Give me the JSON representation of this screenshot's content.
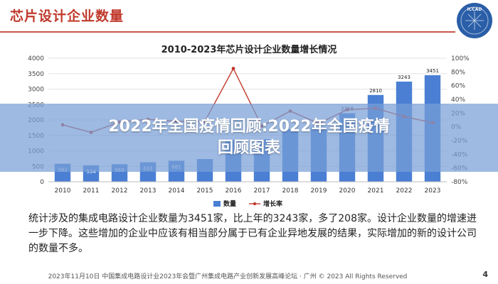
{
  "header": {
    "title": "芯片设计企业数量",
    "logo_text": "ICCAD"
  },
  "colors": {
    "accent": "#c0392b",
    "bar": "#4a7fd4",
    "line": "#c0392b",
    "overlay": "#78a0d7"
  },
  "overlay": {
    "line1": "2022年全国疫情回顾:2022年全国疫情",
    "line2": "回顾图表"
  },
  "chart_data": {
    "type": "bar",
    "title": "2010-2023年芯片设计企业数量增长情况",
    "categories": [
      "2010",
      "2011",
      "2012",
      "2013",
      "2014",
      "2015",
      "2016",
      "2017",
      "2018",
      "2019",
      "2020",
      "2021",
      "2022",
      "2023"
    ],
    "y_ticks_left": [
      "0",
      "500",
      "1000",
      "1500",
      "2000",
      "2500",
      "3000",
      "3500",
      "4000"
    ],
    "y_ticks_right": [
      "-80%",
      "-60%",
      "-40%",
      "-20%",
      "0%",
      "20%",
      "40%",
      "60%",
      "80%",
      "100%"
    ],
    "ylim_left": [
      0,
      4000
    ],
    "ylim_right": [
      -80,
      100
    ],
    "grid": true,
    "legend_position": "bottom-center",
    "series": [
      {
        "name": "数量",
        "kind": "bar",
        "values": [
          582,
          534,
          569,
          632,
          681,
          736,
          1362,
          1380,
          1698,
          1780,
          2218,
          2810,
          3243,
          3451
        ],
        "labels": [
          "582",
          "534",
          "569",
          "632",
          "681",
          "",
          "",
          "",
          "",
          "",
          "2218",
          "2810",
          "3243",
          "3451"
        ]
      },
      {
        "name": "增长率",
        "kind": "line",
        "values": [
          3,
          -8,
          7,
          11,
          8,
          8,
          85,
          1,
          23,
          5,
          25,
          27,
          15,
          6
        ]
      }
    ]
  },
  "description": "统计涉及的集成电路设计企业数量为3451家，比上年的3243家，多了208家。设计企业数量的增速进一步下降。这些增加的企业中应该有相当部分属于已有企业异地发展的结果，实际增加的新的设计公司的数量不多。",
  "footer": {
    "text": "2023年11月10日 中国集成电路设计业2023年会暨广州集成电路产业创新发展高峰论坛 · 广州 © 2023 All Rights Reserved",
    "page": "4"
  }
}
